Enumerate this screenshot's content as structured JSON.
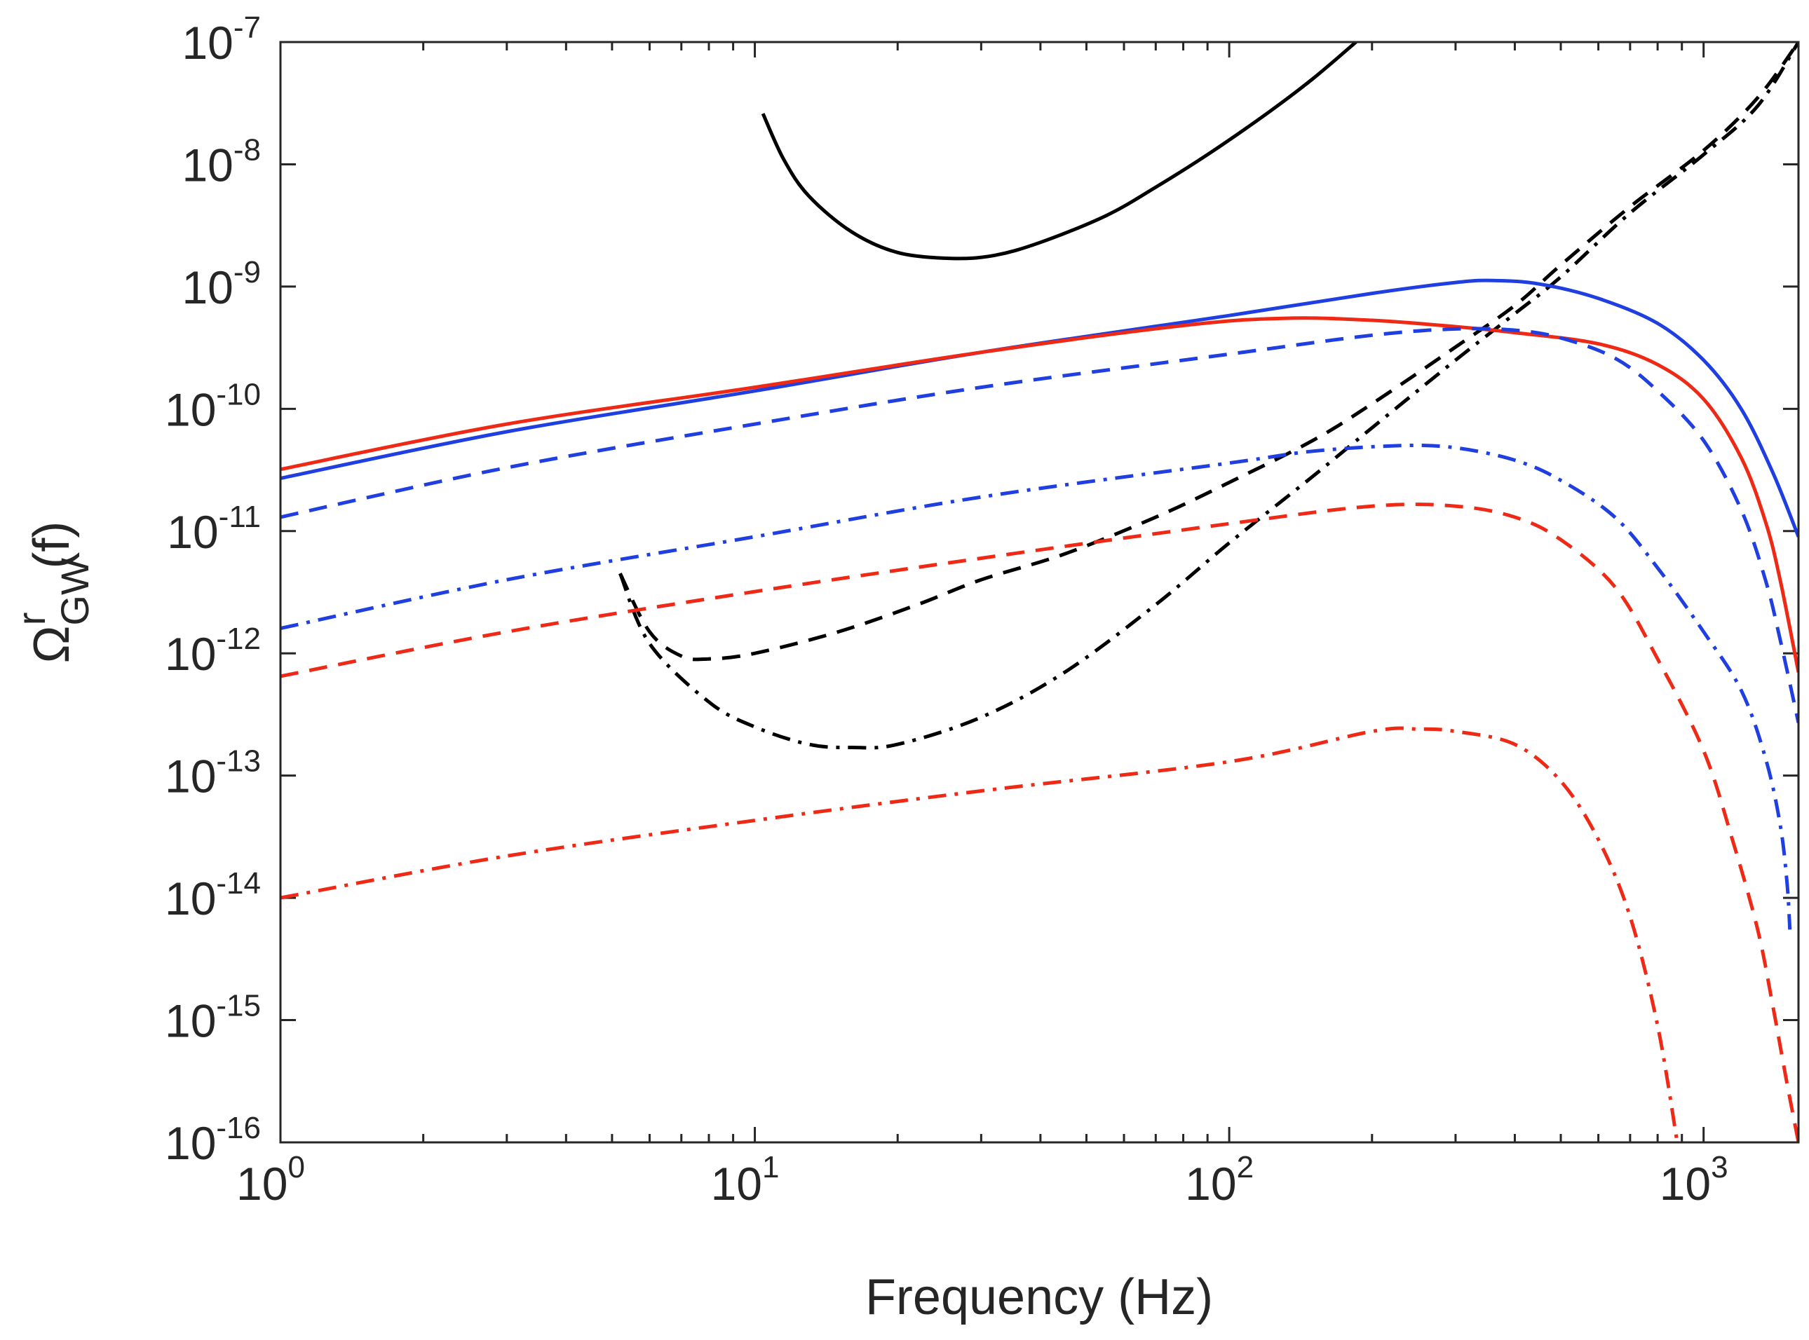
{
  "chart_data": {
    "type": "line",
    "title": "",
    "xlabel": "Frequency (Hz)",
    "ylabel": {
      "base": "Ω",
      "sup": "r",
      "sub": "GW",
      "suffix": "(f)"
    },
    "xscale": "log",
    "yscale": "log",
    "xlim": [
      1,
      1585
    ],
    "ylim": [
      1e-16,
      1e-07
    ],
    "x_ticks": [
      {
        "value": 1,
        "base": "10",
        "exp": "0"
      },
      {
        "value": 10,
        "base": "10",
        "exp": "1"
      },
      {
        "value": 100,
        "base": "10",
        "exp": "2"
      },
      {
        "value": 1000,
        "base": "10",
        "exp": "3"
      }
    ],
    "y_ticks": [
      {
        "value": 1e-07,
        "base": "10",
        "exp": "-7"
      },
      {
        "value": 1e-08,
        "base": "10",
        "exp": "-8"
      },
      {
        "value": 1e-09,
        "base": "10",
        "exp": "-9"
      },
      {
        "value": 1e-10,
        "base": "10",
        "exp": "-10"
      },
      {
        "value": 1e-11,
        "base": "10",
        "exp": "-11"
      },
      {
        "value": 1e-12,
        "base": "10",
        "exp": "-12"
      },
      {
        "value": 1e-13,
        "base": "10",
        "exp": "-13"
      },
      {
        "value": 1e-14,
        "base": "10",
        "exp": "-14"
      },
      {
        "value": 1e-15,
        "base": "10",
        "exp": "-15"
      },
      {
        "value": 1e-16,
        "base": "10",
        "exp": "-16"
      }
    ],
    "series": [
      {
        "name": "black-solid",
        "color": "#000000",
        "style": "solid",
        "points": [
          [
            10.4,
            2.6e-08
          ],
          [
            11.5,
            1.1e-08
          ],
          [
            13,
            5.5e-09
          ],
          [
            16,
            2.8e-09
          ],
          [
            20,
            1.9e-09
          ],
          [
            26,
            1.7e-09
          ],
          [
            32,
            1.8e-09
          ],
          [
            40,
            2.3e-09
          ],
          [
            55,
            3.8e-09
          ],
          [
            70,
            6.5e-09
          ],
          [
            90,
            1.2e-08
          ],
          [
            120,
            2.6e-08
          ],
          [
            150,
            5e-08
          ],
          [
            185,
            1e-07
          ]
        ]
      },
      {
        "name": "black-dashed",
        "color": "#000000",
        "style": "dashed",
        "points": [
          [
            5.2,
            4.5e-12
          ],
          [
            6,
            1.5e-12
          ],
          [
            7,
            9.5e-13
          ],
          [
            8,
            9e-13
          ],
          [
            10,
            1e-12
          ],
          [
            15,
            1.5e-12
          ],
          [
            22,
            2.5e-12
          ],
          [
            30,
            4e-12
          ],
          [
            45,
            6.5e-12
          ],
          [
            70,
            1.3e-11
          ],
          [
            100,
            2.5e-11
          ],
          [
            150,
            5.5e-11
          ],
          [
            200,
            1.1e-10
          ],
          [
            300,
            3.2e-10
          ],
          [
            400,
            7e-10
          ],
          [
            500,
            1.5e-09
          ],
          [
            700,
            4.5e-09
          ],
          [
            1000,
            1.3e-08
          ],
          [
            1300,
            3.5e-08
          ],
          [
            1585,
            1e-07
          ]
        ]
      },
      {
        "name": "black-dashdot",
        "color": "#000000",
        "style": "dashdot",
        "points": [
          [
            5.2,
            4.5e-12
          ],
          [
            6,
            1.2e-12
          ],
          [
            8,
            4e-13
          ],
          [
            10,
            2.5e-13
          ],
          [
            13,
            1.8e-13
          ],
          [
            16,
            1.7e-13
          ],
          [
            20,
            1.8e-13
          ],
          [
            30,
            3e-13
          ],
          [
            45,
            7e-13
          ],
          [
            70,
            2.5e-12
          ],
          [
            100,
            8e-12
          ],
          [
            150,
            2.8e-11
          ],
          [
            200,
            7e-11
          ],
          [
            300,
            2.5e-10
          ],
          [
            400,
            6e-10
          ],
          [
            500,
            1.2e-09
          ],
          [
            700,
            4e-09
          ],
          [
            1000,
            1.2e-08
          ],
          [
            1300,
            3e-08
          ],
          [
            1585,
            1e-07
          ]
        ]
      },
      {
        "name": "blue-solid",
        "color": "#1f3fe0",
        "style": "solid",
        "points": [
          [
            1,
            2.7e-11
          ],
          [
            3,
            6.5e-11
          ],
          [
            10,
            1.4e-10
          ],
          [
            30,
            2.9e-10
          ],
          [
            100,
            5.8e-10
          ],
          [
            200,
            8.8e-10
          ],
          [
            300,
            1.08e-09
          ],
          [
            360,
            1.12e-09
          ],
          [
            450,
            1.05e-09
          ],
          [
            600,
            8e-10
          ],
          [
            800,
            5e-10
          ],
          [
            1000,
            2.5e-10
          ],
          [
            1200,
            1e-10
          ],
          [
            1400,
            3e-11
          ],
          [
            1585,
            9e-12
          ]
        ]
      },
      {
        "name": "red-solid",
        "color": "#ee2a16",
        "style": "solid",
        "points": [
          [
            1,
            3.2e-11
          ],
          [
            3,
            7.5e-11
          ],
          [
            10,
            1.5e-10
          ],
          [
            30,
            2.9e-10
          ],
          [
            80,
            4.8e-10
          ],
          [
            130,
            5.5e-10
          ],
          [
            200,
            5.3e-10
          ],
          [
            300,
            4.7e-10
          ],
          [
            400,
            4.2e-10
          ],
          [
            600,
            3.4e-10
          ],
          [
            800,
            2.3e-10
          ],
          [
            1000,
            1.2e-10
          ],
          [
            1200,
            4e-11
          ],
          [
            1350,
            1.2e-11
          ],
          [
            1450,
            4e-12
          ],
          [
            1585,
            7e-13
          ]
        ]
      },
      {
        "name": "blue-dashed",
        "color": "#1f3fe0",
        "style": "dashed",
        "points": [
          [
            1,
            1.3e-11
          ],
          [
            3,
            3.3e-11
          ],
          [
            10,
            7.5e-11
          ],
          [
            30,
            1.5e-10
          ],
          [
            100,
            2.8e-10
          ],
          [
            200,
            4e-10
          ],
          [
            300,
            4.5e-10
          ],
          [
            400,
            4.4e-10
          ],
          [
            500,
            3.8e-10
          ],
          [
            650,
            2.6e-10
          ],
          [
            800,
            1.4e-10
          ],
          [
            1000,
            5.5e-11
          ],
          [
            1200,
            1.5e-11
          ],
          [
            1350,
            4e-12
          ],
          [
            1450,
            1.3e-12
          ],
          [
            1585,
            2.7e-13
          ]
        ]
      },
      {
        "name": "blue-dashdot",
        "color": "#1f3fe0",
        "style": "dashdot",
        "points": [
          [
            1,
            1.6e-12
          ],
          [
            3,
            4e-12
          ],
          [
            10,
            9e-12
          ],
          [
            30,
            1.9e-11
          ],
          [
            100,
            3.6e-11
          ],
          [
            150,
            4.5e-11
          ],
          [
            230,
            5e-11
          ],
          [
            300,
            4.8e-11
          ],
          [
            400,
            3.8e-11
          ],
          [
            500,
            2.6e-11
          ],
          [
            650,
            1.3e-11
          ],
          [
            800,
            5e-12
          ],
          [
            1000,
            1.5e-12
          ],
          [
            1200,
            5e-13
          ],
          [
            1350,
            1.4e-13
          ],
          [
            1450,
            4e-14
          ],
          [
            1500,
            1.3e-14
          ],
          [
            1520,
            5.5e-15
          ]
        ]
      },
      {
        "name": "red-dashed",
        "color": "#ee2a16",
        "style": "dashed",
        "points": [
          [
            1,
            6.5e-13
          ],
          [
            3,
            1.5e-12
          ],
          [
            10,
            3.2e-12
          ],
          [
            30,
            6e-12
          ],
          [
            100,
            1.15e-11
          ],
          [
            200,
            1.6e-11
          ],
          [
            300,
            1.6e-11
          ],
          [
            400,
            1.3e-11
          ],
          [
            500,
            8.5e-12
          ],
          [
            650,
            3.5e-12
          ],
          [
            800,
            9e-13
          ],
          [
            1000,
            1.6e-13
          ],
          [
            1150,
            3e-14
          ],
          [
            1300,
            5.5e-15
          ],
          [
            1400,
            1.3e-15
          ],
          [
            1500,
            3e-16
          ],
          [
            1585,
            1e-16
          ]
        ]
      },
      {
        "name": "red-dashdot",
        "color": "#ee2a16",
        "style": "dashdot",
        "points": [
          [
            1,
            1e-14
          ],
          [
            3,
            2.2e-14
          ],
          [
            10,
            4.3e-14
          ],
          [
            30,
            7.5e-14
          ],
          [
            100,
            1.3e-13
          ],
          [
            200,
            2.3e-13
          ],
          [
            250,
            2.4e-13
          ],
          [
            300,
            2.3e-13
          ],
          [
            400,
            1.8e-13
          ],
          [
            500,
            9e-14
          ],
          [
            600,
            3e-14
          ],
          [
            700,
            7e-15
          ],
          [
            800,
            9e-16
          ],
          [
            880,
            1e-16
          ]
        ]
      }
    ]
  }
}
